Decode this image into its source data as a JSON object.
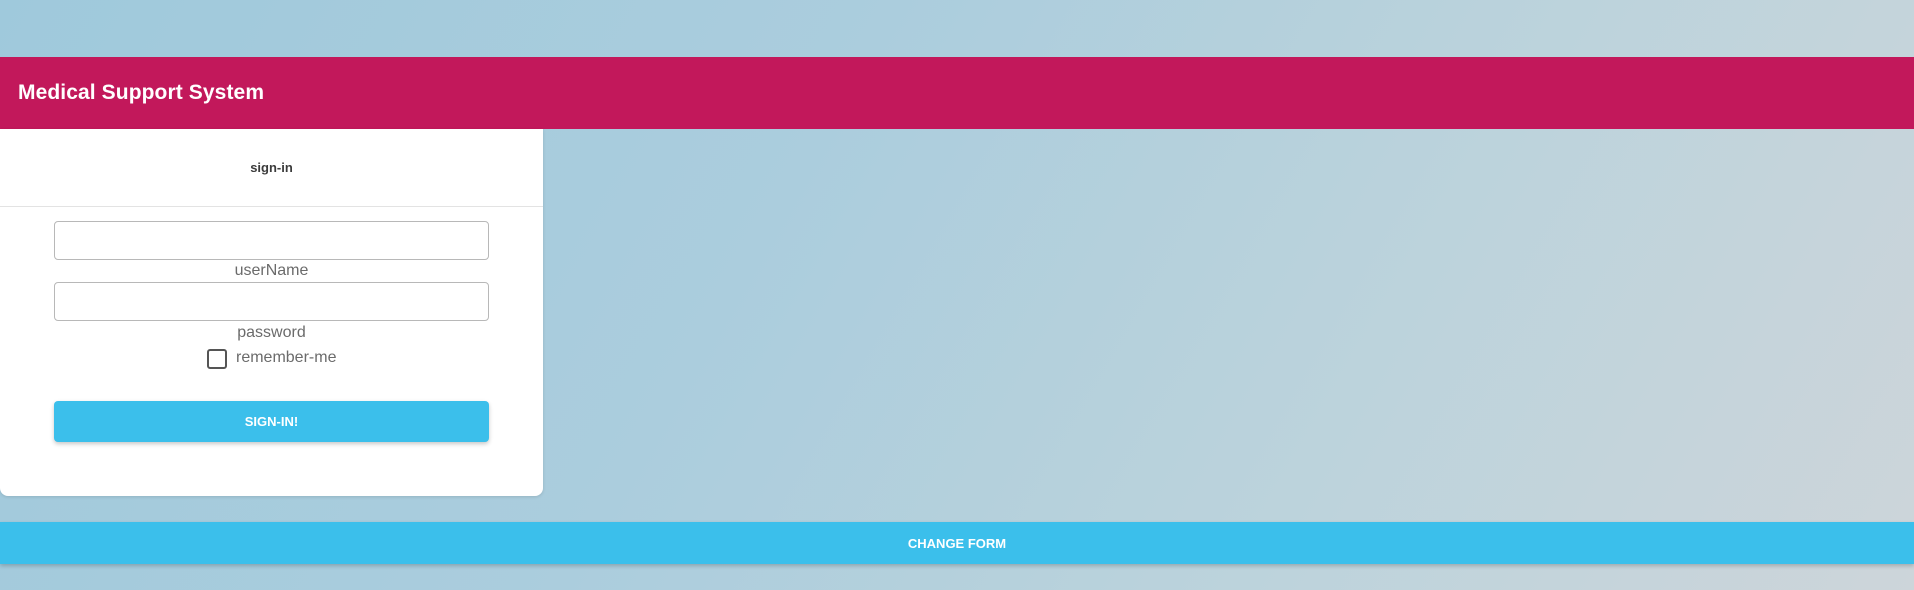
{
  "app": {
    "title": "Medical Support System"
  },
  "signin_card": {
    "title": "sign-in",
    "username": {
      "value": "",
      "label": "userName"
    },
    "password": {
      "value": "",
      "label": "password"
    },
    "remember_me": {
      "label": "remember-me",
      "checked": false
    },
    "submit_label": "SIGN-IN!"
  },
  "footer": {
    "change_form_label": "CHANGE FORM"
  },
  "colors": {
    "app_bar": "#c2185b",
    "button": "#3bbfeb",
    "card": "#ffffff"
  }
}
